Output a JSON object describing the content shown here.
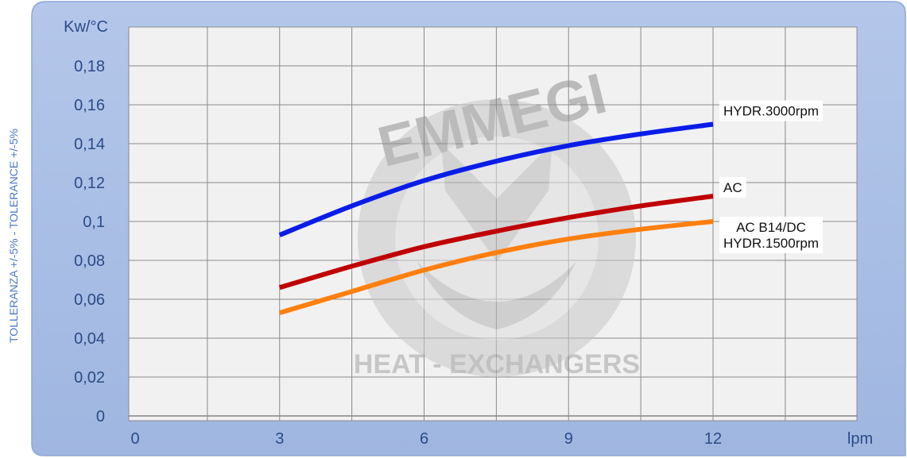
{
  "side_label": "TOLLERANZA +/-5% - TOLERANCE +/-5%",
  "watermark": {
    "brand": "EMMEGI",
    "line": "HEAT - EXCHANGERS"
  },
  "chart_data": {
    "type": "line",
    "ylabel": "Kw/°C",
    "xlabel": "lpm",
    "xlim": [
      0,
      15
    ],
    "ylim": [
      0,
      0.2
    ],
    "x_ticks": [
      0,
      3,
      6,
      9,
      12
    ],
    "x_tick_labels": [
      "0",
      "3",
      "6",
      "9",
      "12"
    ],
    "y_ticks": [
      0,
      0.02,
      0.04,
      0.06,
      0.08,
      0.1,
      0.12,
      0.14,
      0.16,
      0.18
    ],
    "y_tick_labels": [
      "0",
      "0,02",
      "0,04",
      "0,06",
      "0,08",
      "0,1",
      "0,12",
      "0,14",
      "0,16",
      "0,18"
    ],
    "grid": true,
    "series": [
      {
        "name": "HYDR.3000rpm",
        "color": "#0a1de8",
        "x": [
          3,
          4.5,
          6,
          7.5,
          9,
          10.5,
          12
        ],
        "y": [
          0.093,
          0.108,
          0.121,
          0.131,
          0.139,
          0.145,
          0.15
        ]
      },
      {
        "name": "AC",
        "color": "#c00000",
        "x": [
          3,
          4.5,
          6,
          7.5,
          9,
          10.5,
          12
        ],
        "y": [
          0.066,
          0.077,
          0.087,
          0.095,
          0.102,
          0.108,
          0.113
        ]
      },
      {
        "name": "AC B14/DC\nHYDR.1500rpm",
        "color": "#ff7f0e",
        "x": [
          3,
          4.5,
          6,
          7.5,
          9,
          10.5,
          12
        ],
        "y": [
          0.053,
          0.064,
          0.075,
          0.084,
          0.091,
          0.096,
          0.1
        ]
      }
    ]
  }
}
